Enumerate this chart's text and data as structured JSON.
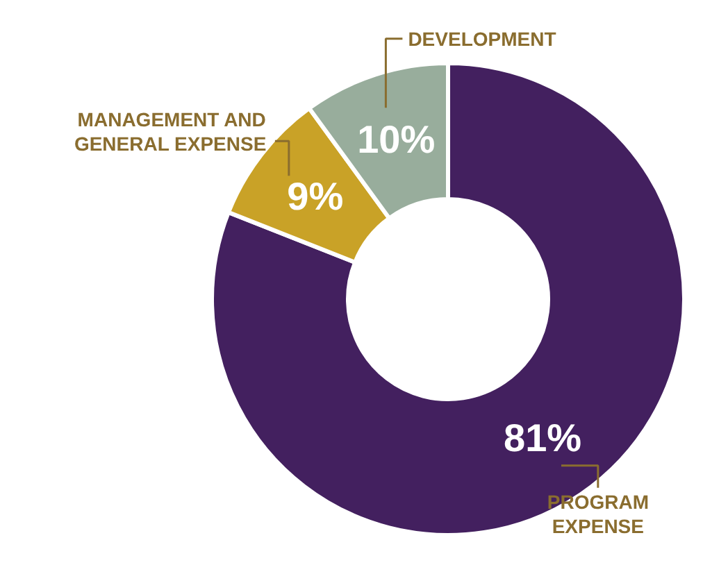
{
  "chart_data": {
    "type": "donut",
    "categories": [
      "PROGRAM\nEXPENSE",
      "MANAGEMENT AND\nGENERAL EXPENSE",
      "DEVELOPMENT"
    ],
    "values": [
      81,
      9,
      10
    ],
    "colors": [
      "#43205f",
      "#c9a227",
      "#98ad9c"
    ],
    "value_labels": [
      "81%",
      "9%",
      "10%"
    ]
  }
}
